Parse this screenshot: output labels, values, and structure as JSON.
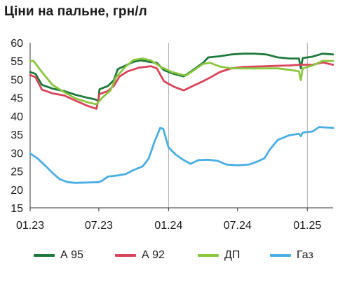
{
  "title": "Ціни на пальне, грн/л",
  "chart_data": {
    "type": "line",
    "title": "Ціни на пальне, грн/л",
    "xlabel": "",
    "ylabel": "",
    "x_range": [
      "2023-01-01",
      "2025-03-10"
    ],
    "ylim": [
      15,
      60
    ],
    "y_ticks": [
      15,
      20,
      25,
      30,
      35,
      40,
      45,
      50,
      55,
      60
    ],
    "x_ticks": [
      {
        "date": "2023-01-01",
        "label": "01.23"
      },
      {
        "date": "2023-07-01",
        "label": "07.23"
      },
      {
        "date": "2024-01-01",
        "label": "01.24"
      },
      {
        "date": "2024-07-01",
        "label": "07.24"
      },
      {
        "date": "2025-01-01",
        "label": "01.25"
      }
    ],
    "grid": "vertical",
    "legend_position": "bottom",
    "series": [
      {
        "name": "А 95",
        "color": "#1e7a3c",
        "points": [
          [
            "2023-01-01",
            52.0
          ],
          [
            "2023-01-15",
            51.5
          ],
          [
            "2023-02-01",
            48.5
          ],
          [
            "2023-03-01",
            47.5
          ],
          [
            "2023-04-01",
            46.8
          ],
          [
            "2023-05-01",
            45.8
          ],
          [
            "2023-06-01",
            45.0
          ],
          [
            "2023-06-20",
            44.6
          ],
          [
            "2023-06-30",
            44.2
          ],
          [
            "2023-07-03",
            47.3
          ],
          [
            "2023-07-25",
            48.2
          ],
          [
            "2023-08-10",
            49.8
          ],
          [
            "2023-08-20",
            52.8
          ],
          [
            "2023-09-10",
            53.8
          ],
          [
            "2023-10-01",
            54.8
          ],
          [
            "2023-10-20",
            55.2
          ],
          [
            "2023-11-10",
            54.8
          ],
          [
            "2023-12-01",
            54.5
          ],
          [
            "2023-12-20",
            52.5
          ],
          [
            "2024-01-15",
            51.5
          ],
          [
            "2024-02-10",
            50.8
          ],
          [
            "2024-03-01",
            52.2
          ],
          [
            "2024-04-01",
            54.5
          ],
          [
            "2024-04-15",
            56.0
          ],
          [
            "2024-05-15",
            56.3
          ],
          [
            "2024-06-15",
            56.8
          ],
          [
            "2024-07-15",
            57.0
          ],
          [
            "2024-08-15",
            57.0
          ],
          [
            "2024-09-15",
            56.8
          ],
          [
            "2024-10-15",
            56.0
          ],
          [
            "2024-11-15",
            55.7
          ],
          [
            "2024-12-10",
            55.7
          ],
          [
            "2024-12-15",
            53.0
          ],
          [
            "2024-12-20",
            55.8
          ],
          [
            "2025-01-15",
            56.2
          ],
          [
            "2025-02-10",
            57.0
          ],
          [
            "2025-03-10",
            56.8
          ]
        ]
      },
      {
        "name": "А 92",
        "color": "#d9445a",
        "points": [
          [
            "2023-01-01",
            51.2
          ],
          [
            "2023-01-15",
            50.6
          ],
          [
            "2023-02-01",
            47.2
          ],
          [
            "2023-03-01",
            46.2
          ],
          [
            "2023-04-01",
            45.6
          ],
          [
            "2023-05-01",
            44.2
          ],
          [
            "2023-06-01",
            42.8
          ],
          [
            "2023-06-25",
            42.0
          ],
          [
            "2023-07-03",
            46.0
          ],
          [
            "2023-07-25",
            46.8
          ],
          [
            "2023-08-10",
            48.3
          ],
          [
            "2023-08-25",
            50.8
          ],
          [
            "2023-09-15",
            52.2
          ],
          [
            "2023-10-15",
            53.2
          ],
          [
            "2023-11-15",
            53.6
          ],
          [
            "2023-12-01",
            53.0
          ],
          [
            "2023-12-20",
            49.5
          ],
          [
            "2024-01-15",
            48.0
          ],
          [
            "2024-02-10",
            47.0
          ],
          [
            "2024-03-01",
            48.0
          ],
          [
            "2024-04-01",
            49.5
          ],
          [
            "2024-04-20",
            50.5
          ],
          [
            "2024-05-15",
            52.0
          ],
          [
            "2024-06-15",
            53.0
          ],
          [
            "2024-07-15",
            53.4
          ],
          [
            "2024-08-15",
            53.5
          ],
          [
            "2024-09-15",
            53.6
          ],
          [
            "2024-10-15",
            53.7
          ],
          [
            "2024-11-15",
            53.8
          ],
          [
            "2024-12-15",
            54.0
          ],
          [
            "2025-01-15",
            54.0
          ],
          [
            "2025-02-10",
            54.6
          ],
          [
            "2025-03-10",
            54.0
          ]
        ]
      },
      {
        "name": "ДП",
        "color": "#8cc63f",
        "points": [
          [
            "2023-01-01",
            55.0
          ],
          [
            "2023-01-10",
            55.0
          ],
          [
            "2023-02-01",
            52.0
          ],
          [
            "2023-03-01",
            48.5
          ],
          [
            "2023-04-01",
            46.5
          ],
          [
            "2023-05-01",
            44.8
          ],
          [
            "2023-06-01",
            43.8
          ],
          [
            "2023-06-25",
            43.2
          ],
          [
            "2023-07-10",
            45.0
          ],
          [
            "2023-08-01",
            47.0
          ],
          [
            "2023-08-15",
            50.5
          ],
          [
            "2023-09-10",
            53.5
          ],
          [
            "2023-10-01",
            55.3
          ],
          [
            "2023-10-25",
            55.7
          ],
          [
            "2023-11-15",
            55.2
          ],
          [
            "2023-12-10",
            53.5
          ],
          [
            "2024-01-10",
            52.0
          ],
          [
            "2024-02-15",
            51.0
          ],
          [
            "2024-03-01",
            52.0
          ],
          [
            "2024-04-01",
            54.2
          ],
          [
            "2024-04-20",
            54.5
          ],
          [
            "2024-05-15",
            53.5
          ],
          [
            "2024-06-15",
            53.0
          ],
          [
            "2024-08-15",
            53.0
          ],
          [
            "2024-10-15",
            53.0
          ],
          [
            "2024-11-15",
            52.6
          ],
          [
            "2024-12-10",
            52.2
          ],
          [
            "2024-12-15",
            49.8
          ],
          [
            "2024-12-20",
            53.0
          ],
          [
            "2025-01-15",
            53.8
          ],
          [
            "2025-02-10",
            55.0
          ],
          [
            "2025-03-10",
            55.0
          ]
        ]
      },
      {
        "name": "Газ",
        "color": "#4aaee3",
        "points": [
          [
            "2023-01-01",
            29.8
          ],
          [
            "2023-01-20",
            28.5
          ],
          [
            "2023-02-10",
            26.5
          ],
          [
            "2023-03-01",
            24.5
          ],
          [
            "2023-03-20",
            22.8
          ],
          [
            "2023-04-10",
            22.0
          ],
          [
            "2023-05-01",
            21.8
          ],
          [
            "2023-06-01",
            21.9
          ],
          [
            "2023-07-01",
            22.0
          ],
          [
            "2023-07-10",
            22.4
          ],
          [
            "2023-07-25",
            23.5
          ],
          [
            "2023-08-20",
            23.8
          ],
          [
            "2023-09-10",
            24.2
          ],
          [
            "2023-10-01",
            25.3
          ],
          [
            "2023-10-25",
            26.3
          ],
          [
            "2023-11-10",
            28.5
          ],
          [
            "2023-11-25",
            33.0
          ],
          [
            "2023-12-10",
            36.8
          ],
          [
            "2023-12-18",
            36.5
          ],
          [
            "2024-01-01",
            31.5
          ],
          [
            "2024-01-20",
            29.5
          ],
          [
            "2024-02-10",
            28.0
          ],
          [
            "2024-02-28",
            27.0
          ],
          [
            "2024-03-20",
            28.0
          ],
          [
            "2024-04-15",
            28.1
          ],
          [
            "2024-05-10",
            27.8
          ],
          [
            "2024-06-01",
            26.8
          ],
          [
            "2024-07-01",
            26.6
          ],
          [
            "2024-08-01",
            26.8
          ],
          [
            "2024-08-20",
            27.5
          ],
          [
            "2024-09-10",
            28.5
          ],
          [
            "2024-09-25",
            31.0
          ],
          [
            "2024-10-15",
            33.5
          ],
          [
            "2024-11-15",
            34.8
          ],
          [
            "2024-12-10",
            35.2
          ],
          [
            "2024-12-15",
            34.5
          ],
          [
            "2024-12-20",
            35.5
          ],
          [
            "2025-01-15",
            35.8
          ],
          [
            "2025-02-01",
            37.0
          ],
          [
            "2025-03-10",
            36.8
          ]
        ]
      }
    ]
  }
}
